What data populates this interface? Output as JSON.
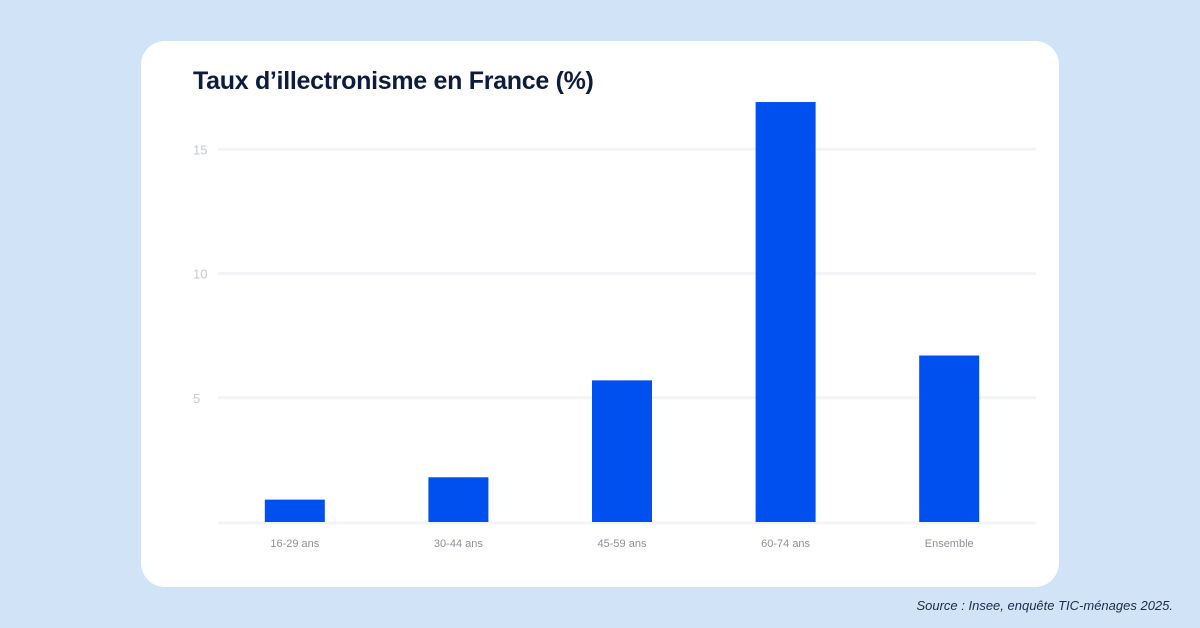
{
  "source": "Source : Insee, enquête TIC-ménages 2025.",
  "colors": {
    "background": "#d1e4f7",
    "card": "#ffffff",
    "bar": "#0050ef",
    "title": "#0d1b3e"
  },
  "chart_data": {
    "type": "bar",
    "title": "Taux d’illectronisme en France (%)",
    "xlabel": "",
    "ylabel": "",
    "categories": [
      "16-29 ans",
      "30-44 ans",
      "45-59 ans",
      "60-74 ans",
      "Ensemble"
    ],
    "values": [
      0.9,
      1.8,
      5.7,
      16.9,
      6.7
    ],
    "yticks": [
      5,
      10,
      15
    ],
    "ylim": [
      0,
      17
    ],
    "grid": true,
    "legend": "none"
  }
}
